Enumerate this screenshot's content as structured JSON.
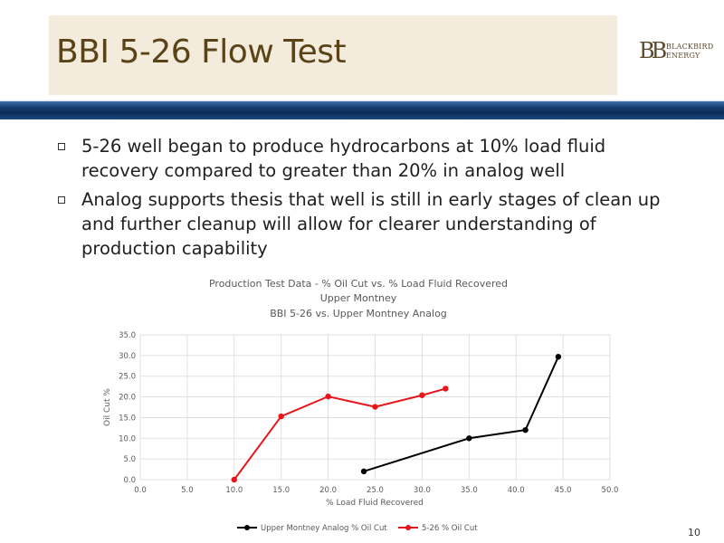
{
  "slide": {
    "title": "BBI 5-26 Flow Test",
    "logo": {
      "mark": "BB",
      "line1": "BLACKBIRD",
      "line2": "ENERGY"
    },
    "bullets": [
      "5-26 well began to produce hydrocarbons at 10% load fluid recovery compared to greater than 20% in analog well",
      "Analog supports thesis that well is still in early stages of clean up and further cleanup will allow for clearer understanding of production capability"
    ],
    "page_number": "10"
  },
  "chart_data": {
    "type": "line",
    "title": [
      "Production Test Data - % Oil Cut vs. % Load Fluid Recovered",
      "Upper Montney",
      "BBI 5-26 vs. Upper Montney Analog"
    ],
    "xlabel": "% Load Fluid Recovered",
    "ylabel": "Oil Cut %",
    "xlim": [
      0,
      50
    ],
    "ylim": [
      0,
      35
    ],
    "x_ticks": [
      "0.0",
      "5.0",
      "10.0",
      "15.0",
      "20.0",
      "25.0",
      "30.0",
      "35.0",
      "40.0",
      "45.0",
      "50.0"
    ],
    "y_ticks": [
      "0.0",
      "5.0",
      "10.0",
      "15.0",
      "20.0",
      "25.0",
      "30.0",
      "35.0"
    ],
    "grid": true,
    "legend_position": "bottom",
    "series": [
      {
        "name": "Upper Montney Analog % Oil Cut",
        "color": "#000000",
        "points": [
          [
            23.8,
            2.0
          ],
          [
            35.0,
            10.0
          ],
          [
            41.0,
            12.0
          ],
          [
            44.5,
            29.7
          ]
        ]
      },
      {
        "name": "5-26 % Oil Cut",
        "color": "#e8161b",
        "points": [
          [
            10.0,
            0.0
          ],
          [
            15.0,
            15.3
          ],
          [
            20.0,
            20.1
          ],
          [
            25.0,
            17.6
          ],
          [
            30.0,
            20.4
          ],
          [
            32.5,
            22.0
          ]
        ]
      }
    ]
  }
}
